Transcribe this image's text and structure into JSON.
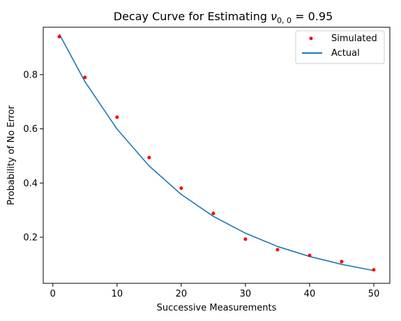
{
  "chart_data": {
    "type": "scatter",
    "title_prefix": "Decay Curve for Estimating ",
    "title_symbol": "ν",
    "title_subscript": "0, 0",
    "title_suffix": " = 0.95",
    "xlabel": "Successive Measurements",
    "ylabel": "Probability of No Error",
    "xlim": [
      -1.5,
      52.5
    ],
    "ylim": [
      0.03,
      0.975
    ],
    "xticks": [
      0,
      10,
      20,
      30,
      40,
      50
    ],
    "yticks": [
      0.2,
      0.4,
      0.6,
      0.8
    ],
    "xtick_labels": [
      "0",
      "10",
      "20",
      "30",
      "40",
      "50"
    ],
    "ytick_labels": [
      "0.2",
      "0.4",
      "0.6",
      "0.8"
    ],
    "legend_position": "top-right",
    "series": [
      {
        "name": "Simulated",
        "kind": "scatter",
        "color": "#ff0000",
        "x": [
          1,
          5,
          10,
          15,
          20,
          25,
          30,
          35,
          40,
          45,
          50
        ],
        "y": [
          0.94,
          0.79,
          0.643,
          0.494,
          0.381,
          0.288,
          0.193,
          0.154,
          0.133,
          0.11,
          0.08
        ]
      },
      {
        "name": "Actual",
        "kind": "line",
        "color": "#1f77b4",
        "x": [
          1,
          5,
          10,
          15,
          20,
          25,
          30,
          35,
          40,
          45,
          50
        ],
        "y": [
          0.95,
          0.774,
          0.599,
          0.463,
          0.358,
          0.277,
          0.215,
          0.166,
          0.129,
          0.1,
          0.077
        ]
      }
    ]
  }
}
